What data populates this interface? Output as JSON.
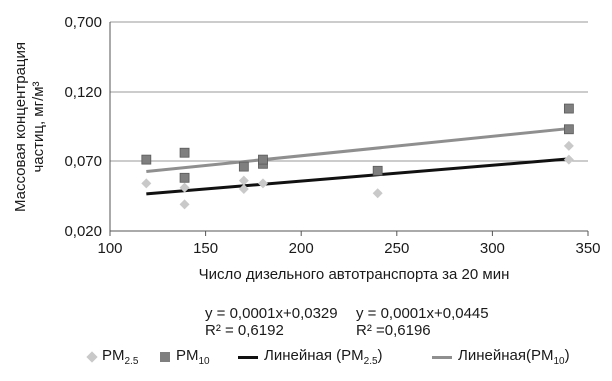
{
  "chart_data": {
    "type": "scatter",
    "xlabel": "Число дизельного автотранспорта за 20 мин",
    "ylabel_line1": "Массовая концентрация",
    "ylabel_line2": "частиц, мг/м³",
    "xlim": [
      100,
      350
    ],
    "x_ticks": [
      "100",
      "150",
      "200",
      "250",
      "300",
      "350"
    ],
    "y_ticks": [
      "0,020",
      "0,070",
      "0,120",
      "0,700"
    ],
    "grid": "horizontal",
    "series": [
      {
        "name": "PM2.5",
        "marker": "diamond",
        "color": "#c9c9c9",
        "points": [
          {
            "x": 119,
            "y": 0.054
          },
          {
            "x": 139,
            "y": 0.051
          },
          {
            "x": 139,
            "y": 0.039
          },
          {
            "x": 170,
            "y": 0.056
          },
          {
            "x": 170,
            "y": 0.05
          },
          {
            "x": 180,
            "y": 0.054
          },
          {
            "x": 240,
            "y": 0.047
          },
          {
            "x": 340,
            "y": 0.081
          },
          {
            "x": 340,
            "y": 0.071
          }
        ]
      },
      {
        "name": "PM10",
        "marker": "square",
        "color": "#7f7f7f",
        "points": [
          {
            "x": 119,
            "y": 0.071
          },
          {
            "x": 139,
            "y": 0.076
          },
          {
            "x": 139,
            "y": 0.058
          },
          {
            "x": 170,
            "y": 0.066
          },
          {
            "x": 180,
            "y": 0.068
          },
          {
            "x": 180,
            "y": 0.071
          },
          {
            "x": 240,
            "y": 0.063
          },
          {
            "x": 340,
            "y": 0.108
          },
          {
            "x": 340,
            "y": 0.093
          }
        ]
      }
    ],
    "trendlines": [
      {
        "series": "PM2.5",
        "color": "#111111",
        "x": [
          119,
          340
        ],
        "y": [
          0.0465,
          0.0715
        ]
      },
      {
        "series": "PM10",
        "color": "#8f8f8f",
        "x": [
          119,
          340
        ],
        "y": [
          0.0625,
          0.0935
        ]
      }
    ],
    "equations": [
      {
        "eq": "y = 0,0001x+0,0329",
        "r2": "R² = 0,6192"
      },
      {
        "eq": "y = 0,0001x+0,0445",
        "r2": "R² =0,6196"
      }
    ],
    "legend": {
      "placement": "bottom",
      "items": [
        {
          "symbol": "diamond",
          "color": "#c9c9c9",
          "text": "PM",
          "sub": "2.5",
          "after": ""
        },
        {
          "symbol": "square",
          "color": "#7f7f7f",
          "text": "PM",
          "sub": "10",
          "after": ""
        },
        {
          "symbol": "line",
          "color": "#111111",
          "text": "Линейная (PM",
          "sub": "2.5",
          "after": ")"
        },
        {
          "symbol": "line",
          "color": "#8f8f8f",
          "text": "Линейная(PM",
          "sub": "10",
          "after": ")"
        }
      ]
    }
  }
}
